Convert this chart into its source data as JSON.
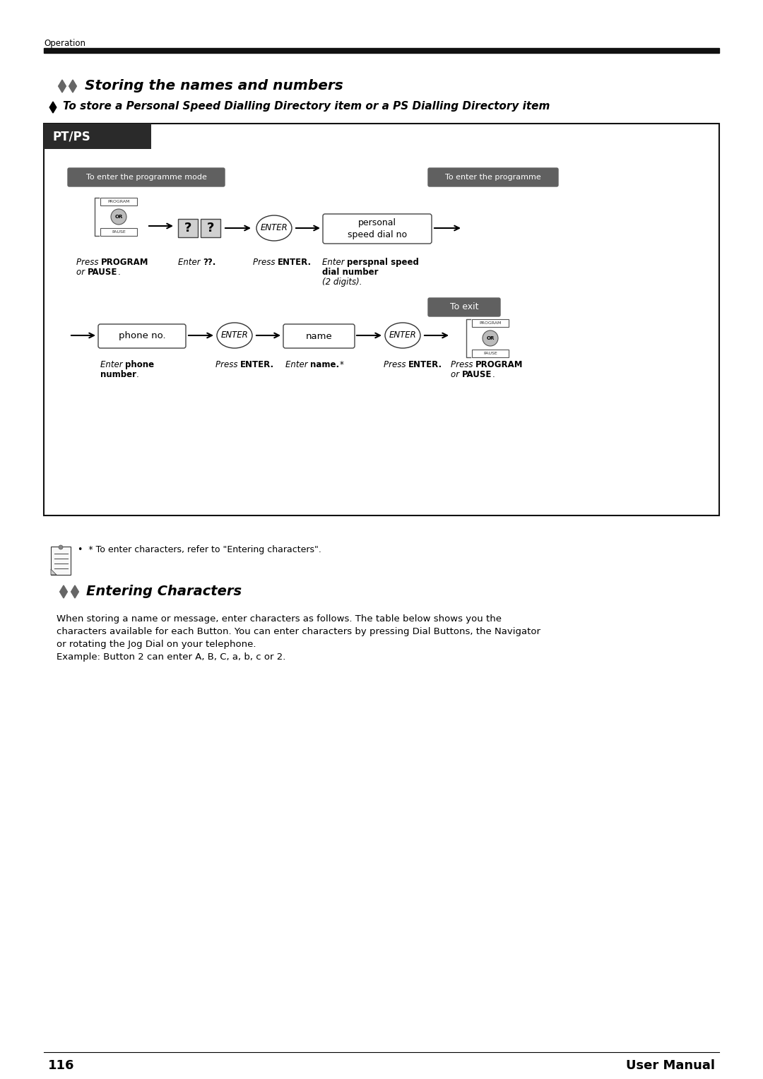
{
  "page_number": "116",
  "page_label": "User Manual",
  "header_label": "Operation",
  "bg_color": "#ffffff",
  "main_title": "Storing the names and numbers",
  "sub_title": "To store a Personal Speed Dialling Directory item or a PS Dialling Directory item",
  "box_label": "PT/PS",
  "label_prog_mode": "To enter the programme mode",
  "label_prog": "To enter the programme",
  "label_exit": "To exit",
  "footnote": "* To enter characters, refer to \"Entering characters\".",
  "entering_title": "Entering Characters",
  "entering_body_line1": "When storing a name or message, enter characters as follows. The table below shows you the",
  "entering_body_line2": "characters available for each Button. You can enter characters by pressing Dial Buttons, the Navigator",
  "entering_body_line3": "or rotating the Jog Dial on your telephone.",
  "entering_body_line4": "Example: Button 2 can enter A, B, C, a, b, c or 2."
}
